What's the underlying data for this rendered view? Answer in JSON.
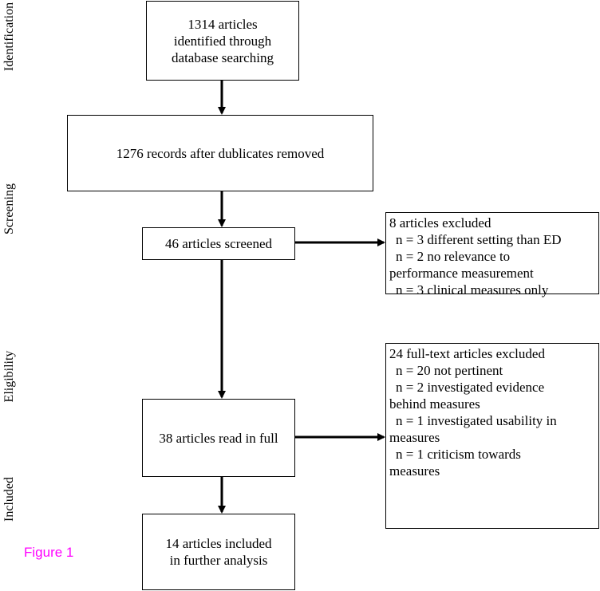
{
  "stages": {
    "identification": "Identification",
    "screening": "Screening",
    "eligibility": "Eligibility",
    "included": "Included"
  },
  "boxes": {
    "identified": [
      "1314 articles",
      "identified through",
      "database searching"
    ],
    "after_duplicates": [
      "1276 records after dublicates removed"
    ],
    "screened": [
      "46 articles screened"
    ],
    "read_full": [
      "38 articles read in full"
    ],
    "included": [
      "14 articles included",
      "in further analysis"
    ]
  },
  "excluded_screening": {
    "title": "8 articles excluded",
    "lines": [
      "n = 3 different setting than ED",
      "n = 2 no relevance to",
      "performance measurement",
      "n = 3 clinical measures only"
    ]
  },
  "excluded_fulltext": {
    "title": "24 full-text articles excluded",
    "lines": [
      "n = 20 not pertinent",
      "n = 2 investigated evidence",
      "behind measures",
      "n = 1 investigated usability in",
      "measures",
      "n = 1 criticism towards",
      "measures"
    ]
  },
  "figure_label": "Figure 1"
}
